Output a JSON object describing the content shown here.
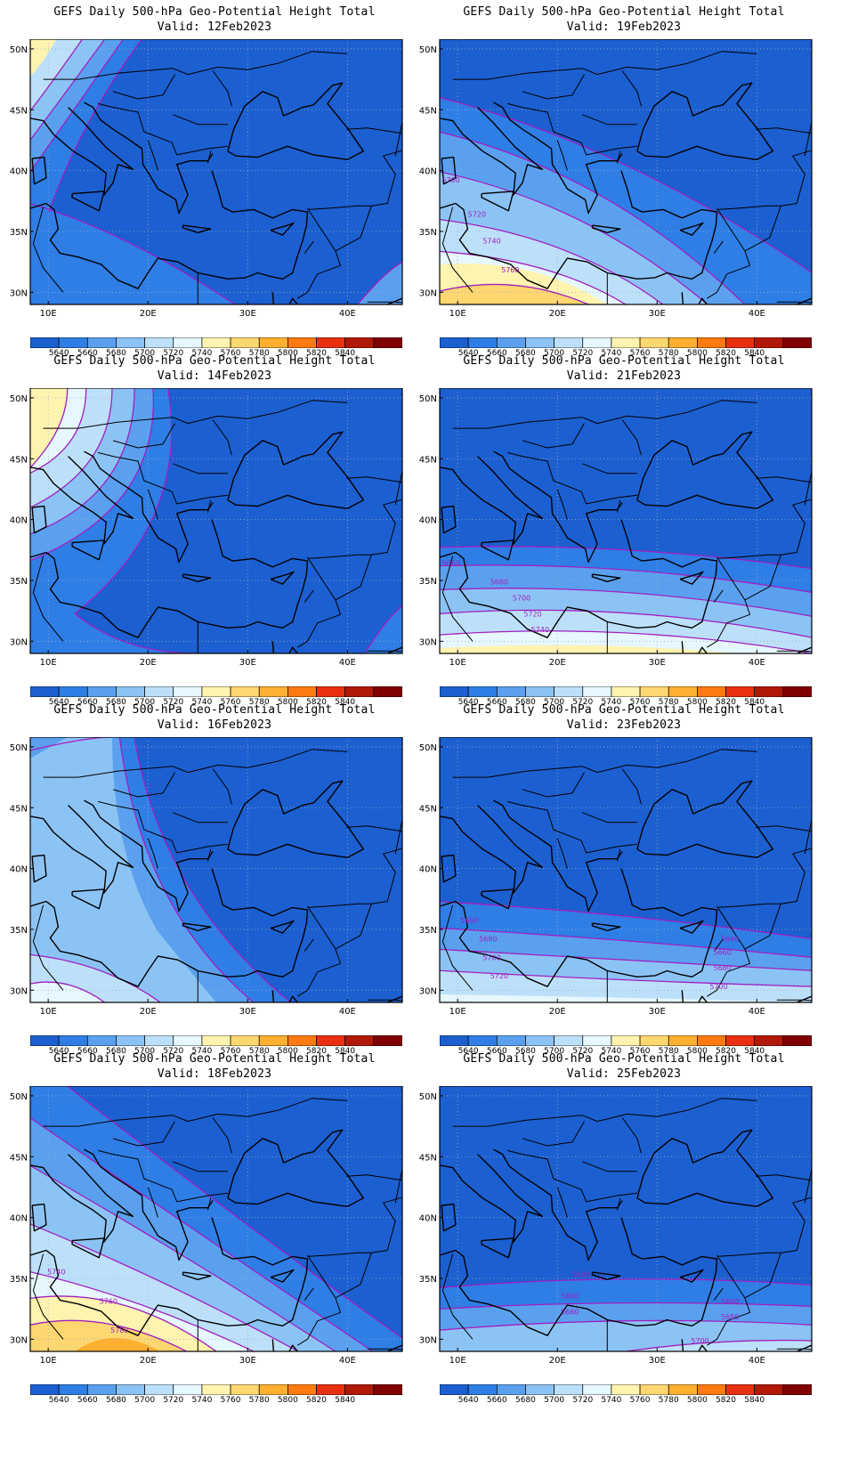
{
  "title_line1": "GEFS Daily 500-hPa Geo-Potential Height Total",
  "panels": [
    {
      "valid": "Valid: 12Feb2023",
      "contour_labels": []
    },
    {
      "valid": "Valid: 19Feb2023",
      "contour_labels": [
        "5700",
        "5720",
        "5740",
        "5760"
      ]
    },
    {
      "valid": "Valid: 14Feb2023",
      "contour_labels": []
    },
    {
      "valid": "Valid: 21Feb2023",
      "contour_labels": [
        "5660",
        "5680",
        "5700",
        "5720",
        "5740"
      ]
    },
    {
      "valid": "Valid: 16Feb2023",
      "contour_labels": []
    },
    {
      "valid": "Valid: 23Feb2023",
      "contour_labels": [
        "5660",
        "5680",
        "5700",
        "5720",
        "5640",
        "5660",
        "5680",
        "5700"
      ]
    },
    {
      "valid": "Valid: 18Feb2023",
      "contour_labels": [
        "5740",
        "5760",
        "5780"
      ]
    },
    {
      "valid": "Valid: 25Feb2023",
      "contour_labels": [
        "5640",
        "5660",
        "5680",
        "5660",
        "5680",
        "5700"
      ]
    }
  ],
  "lat_labels": [
    "50N",
    "45N",
    "40N",
    "35N",
    "30N"
  ],
  "lon_labels": [
    "10E",
    "20E",
    "30E",
    "40E"
  ],
  "colorbar": {
    "labels": [
      "5640",
      "5660",
      "5680",
      "5700",
      "5720",
      "5740",
      "5760",
      "5780",
      "5800",
      "5820",
      "5840"
    ],
    "colors": [
      "#1c5fd0",
      "#2e7ee6",
      "#5aa0ef",
      "#8cc3f5",
      "#bde0fa",
      "#e6f7fd",
      "#fff3b0",
      "#ffd770",
      "#ffb030",
      "#ff7a10",
      "#e83010",
      "#b01808",
      "#800000"
    ]
  },
  "contour_color": "#a020c0",
  "coast_color": "#000000"
}
